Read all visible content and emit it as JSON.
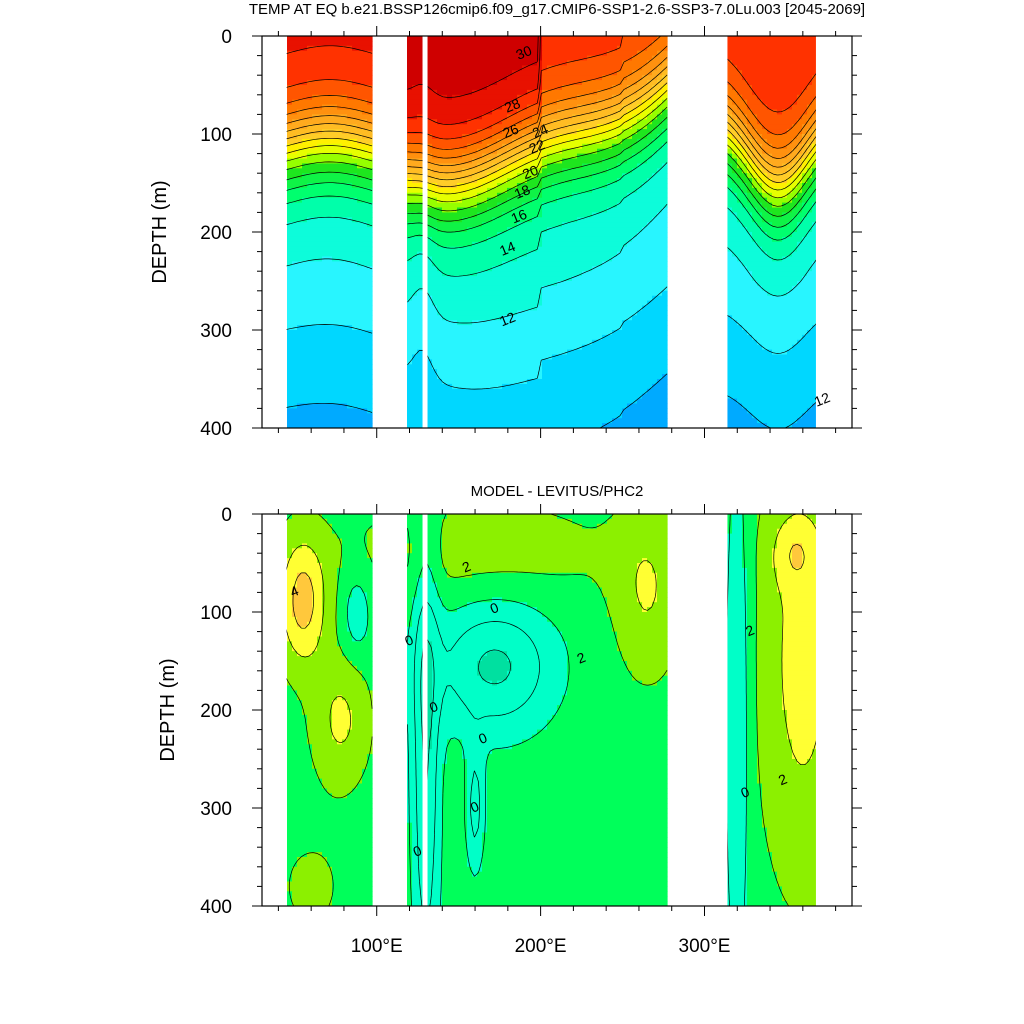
{
  "chart_data": [
    {
      "type": "heatmap",
      "title": "TEMP AT EQ b.e21.BSSP126cmip6.f09_g17.CMIP6-SSP1-2.6-SSP3-7.0Lu.003 [2045-2069]",
      "ylabel": "DEPTH (m)",
      "xlabel": "",
      "ylim": [
        400,
        0
      ],
      "xlim": [
        30,
        390
      ],
      "yticks": [
        "0",
        "100",
        "200",
        "300",
        "400"
      ],
      "xticks": [],
      "contour_interval": 1,
      "contour_labels": [
        {
          "text": "30",
          "lon": 190,
          "depth": 18
        },
        {
          "text": "28",
          "lon": 183,
          "depth": 72
        },
        {
          "text": "26",
          "lon": 182,
          "depth": 98
        },
        {
          "text": "24",
          "lon": 200,
          "depth": 98
        },
        {
          "text": "22",
          "lon": 198,
          "depth": 114
        },
        {
          "text": "20",
          "lon": 194,
          "depth": 140
        },
        {
          "text": "18",
          "lon": 189,
          "depth": 160
        },
        {
          "text": "16",
          "lon": 187,
          "depth": 185
        },
        {
          "text": "14",
          "lon": 180,
          "depth": 218
        },
        {
          "text": "12",
          "lon": 180,
          "depth": 290
        },
        {
          "text": "12",
          "lon": 372,
          "depth": 372
        }
      ]
    },
    {
      "type": "heatmap",
      "title": "MODEL - LEVITUS/PHC2",
      "ylabel": "DEPTH (m)",
      "xlabel": "",
      "ylim": [
        400,
        0
      ],
      "xlim": [
        30,
        390
      ],
      "yticks": [
        "0",
        "100",
        "200",
        "300",
        "400"
      ],
      "xticks": [
        "100°E",
        "200°E",
        "300°E"
      ],
      "contour_interval": 1,
      "contour_labels": [
        {
          "text": "4",
          "lon": 50,
          "depth": 80
        },
        {
          "text": "2",
          "lon": 155,
          "depth": 55
        },
        {
          "text": "0",
          "lon": 172,
          "depth": 97
        },
        {
          "text": "0",
          "lon": 120,
          "depth": 130
        },
        {
          "text": "2",
          "lon": 225,
          "depth": 148
        },
        {
          "text": "0",
          "lon": 135,
          "depth": 198
        },
        {
          "text": "0",
          "lon": 165,
          "depth": 230
        },
        {
          "text": "0",
          "lon": 160,
          "depth": 300
        },
        {
          "text": "0",
          "lon": 125,
          "depth": 345
        },
        {
          "text": "2",
          "lon": 328,
          "depth": 120
        },
        {
          "text": "0",
          "lon": 325,
          "depth": 285
        },
        {
          "text": "2",
          "lon": 348,
          "depth": 272
        }
      ]
    }
  ],
  "colors": {
    "frame": "#000000",
    "land": "#ffffff"
  }
}
